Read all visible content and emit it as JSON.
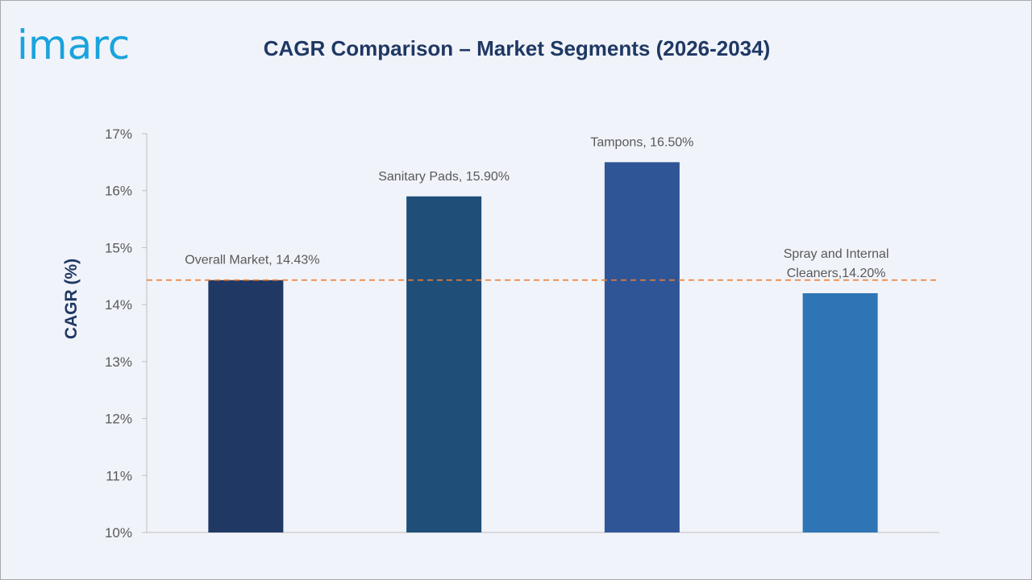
{
  "brand": {
    "logo_text": "imarc",
    "logo_color": "#1aa3dc"
  },
  "chart_data": {
    "type": "bar",
    "title": "CAGR Comparison – Market Segments (2026-2034)",
    "ylabel": "CAGR (%)",
    "xlabel": "",
    "ylim": [
      10,
      17
    ],
    "yticks": [
      10,
      11,
      12,
      13,
      14,
      15,
      16,
      17
    ],
    "ytick_labels": [
      "10%",
      "11%",
      "12%",
      "13%",
      "14%",
      "15%",
      "16%",
      "17%"
    ],
    "categories": [
      "Overall Market",
      "Sanitary Pads",
      "Tampons",
      "Spray and Internal Cleaners"
    ],
    "values": [
      14.43,
      15.9,
      16.5,
      14.2
    ],
    "data_labels": [
      [
        "Overall Market, 14.43%"
      ],
      [
        "Sanitary Pads, 15.90%"
      ],
      [
        "Tampons, 16.50%"
      ],
      [
        "Spray and Internal",
        "Cleaners,14.20%"
      ]
    ],
    "bar_colors": [
      "#203864",
      "#1f4e79",
      "#2f5597",
      "#2e75b6"
    ],
    "reference_line": {
      "value": 14.43,
      "style": "dashed",
      "color": "#ed7d31"
    },
    "grid": false,
    "legend": "none"
  }
}
